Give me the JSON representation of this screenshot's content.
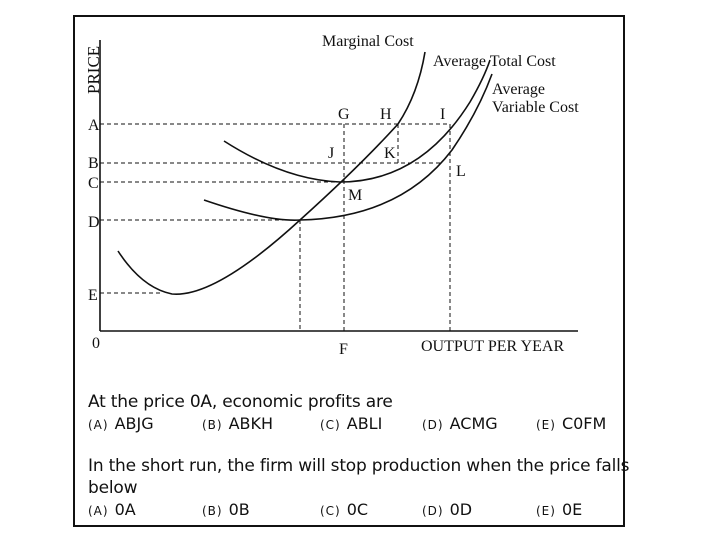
{
  "diagram": {
    "axis_labels": {
      "y": "PRICE",
      "x": "OUTPUT PER YEAR",
      "origin": "0"
    },
    "price_levels": [
      "A",
      "B",
      "C",
      "D",
      "E"
    ],
    "output_level": "F",
    "curves": [
      "Marginal Cost",
      "Average Total Cost"
    ],
    "avc_label": [
      "Average",
      "Variable Cost"
    ],
    "points": [
      "G",
      "H",
      "I",
      "J",
      "K",
      "L",
      "M"
    ]
  },
  "questions": [
    {
      "text": "At the price 0A, economic profits are",
      "options": [
        {
          "letter": "(A)",
          "text": "ABJG"
        },
        {
          "letter": "(B)",
          "text": "ABKH"
        },
        {
          "letter": "(C)",
          "text": "ABLI"
        },
        {
          "letter": "(D)",
          "text": "ACMG"
        },
        {
          "letter": "(E)",
          "text": "C0FM"
        }
      ]
    },
    {
      "text_lines": [
        "In the short run, the firm will stop production when the price falls",
        "below"
      ],
      "options": [
        {
          "letter": "(A)",
          "text": "0A"
        },
        {
          "letter": "(B)",
          "text": "0B"
        },
        {
          "letter": "(C)",
          "text": "0C"
        },
        {
          "letter": "(D)",
          "text": "0D"
        },
        {
          "letter": "(E)",
          "text": "0E"
        }
      ]
    }
  ]
}
